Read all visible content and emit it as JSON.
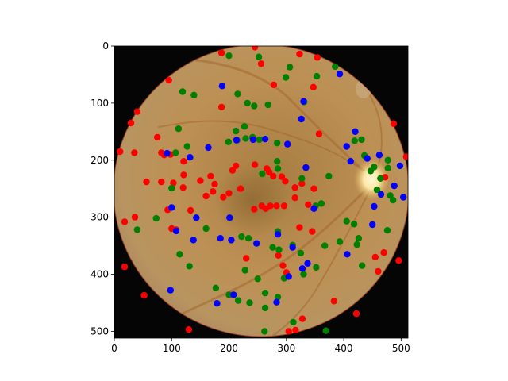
{
  "chart_data": {
    "type": "scatter",
    "background": "fundus-image",
    "xlim": [
      0,
      512
    ],
    "ylim": [
      512,
      0
    ],
    "x_ticks": [
      "0",
      "100",
      "200",
      "300",
      "400",
      "500"
    ],
    "y_ticks": [
      "0",
      "100",
      "200",
      "300",
      "400",
      "500"
    ],
    "grid": false,
    "series": [
      {
        "color": "#ff0000",
        "points": [
          [
            187,
            12
          ],
          [
            245,
            2
          ],
          [
            323,
            14
          ],
          [
            354,
            20
          ],
          [
            256,
            31
          ],
          [
            95,
            60
          ],
          [
            187,
            107
          ],
          [
            278,
            68
          ],
          [
            347,
            72
          ],
          [
            29,
            135
          ],
          [
            40,
            115
          ],
          [
            10,
            185
          ],
          [
            35,
            187
          ],
          [
            75,
            160
          ],
          [
            82,
            187
          ],
          [
            87,
            191
          ],
          [
            98,
            190
          ],
          [
            121,
            202
          ],
          [
            121,
            226
          ],
          [
            82,
            238
          ],
          [
            103,
            240
          ],
          [
            120,
            248
          ],
          [
            150,
            236
          ],
          [
            168,
            228
          ],
          [
            175,
            242
          ],
          [
            172,
            255
          ],
          [
            160,
            263
          ],
          [
            190,
            265
          ],
          [
            200,
            258
          ],
          [
            206,
            218
          ],
          [
            212,
            210
          ],
          [
            220,
            250
          ],
          [
            245,
            208
          ],
          [
            266,
            215
          ],
          [
            270,
            221
          ],
          [
            277,
            228
          ],
          [
            292,
            229
          ],
          [
            298,
            237
          ],
          [
            315,
            248
          ],
          [
            315,
            266
          ],
          [
            327,
            241
          ],
          [
            348,
            250
          ],
          [
            338,
            278
          ],
          [
            357,
            154
          ],
          [
            472,
            230
          ],
          [
            487,
            136
          ],
          [
            509,
            194
          ],
          [
            56,
            238
          ],
          [
            36,
            300
          ],
          [
            18,
            308
          ],
          [
            93,
            287
          ],
          [
            100,
            320
          ],
          [
            108,
            322
          ],
          [
            133,
            288
          ],
          [
            257,
            280
          ],
          [
            264,
            285
          ],
          [
            272,
            280
          ],
          [
            283,
            280
          ],
          [
            296,
            280
          ],
          [
            244,
            286
          ],
          [
            230,
            372
          ],
          [
            286,
            367
          ],
          [
            294,
            385
          ],
          [
            300,
            397
          ],
          [
            323,
            318
          ],
          [
            345,
            325
          ],
          [
            328,
            478
          ],
          [
            304,
            500
          ],
          [
            316,
            498
          ],
          [
            18,
            387
          ],
          [
            52,
            437
          ],
          [
            130,
            497
          ],
          [
            383,
            447
          ],
          [
            422,
            469
          ],
          [
            455,
            370
          ],
          [
            460,
            395
          ],
          [
            470,
            362
          ],
          [
            496,
            376
          ]
        ]
      },
      {
        "color": "#008000",
        "points": [
          [
            200,
            17
          ],
          [
            252,
            19
          ],
          [
            306,
            37
          ],
          [
            353,
            53
          ],
          [
            385,
            36
          ],
          [
            299,
            55
          ],
          [
            119,
            80
          ],
          [
            139,
            86
          ],
          [
            215,
            84
          ],
          [
            232,
            100
          ],
          [
            244,
            105
          ],
          [
            268,
            103
          ],
          [
            331,
            98
          ],
          [
            112,
            145
          ],
          [
            127,
            176
          ],
          [
            107,
            187
          ],
          [
            100,
            249
          ],
          [
            214,
            165
          ],
          [
            227,
            141
          ],
          [
            229,
            162
          ],
          [
            241,
            160
          ],
          [
            253,
            164
          ],
          [
            284,
            170
          ],
          [
            284,
            202
          ],
          [
            285,
            215
          ],
          [
            199,
            168
          ],
          [
            212,
            149
          ],
          [
            258,
            224
          ],
          [
            327,
            232
          ],
          [
            374,
            228
          ],
          [
            419,
            166
          ],
          [
            431,
            164
          ],
          [
            436,
            192
          ],
          [
            447,
            219
          ],
          [
            453,
            212
          ],
          [
            464,
            232
          ],
          [
            477,
            214
          ],
          [
            477,
            200
          ],
          [
            481,
            262
          ],
          [
            486,
            270
          ],
          [
            458,
            252
          ],
          [
            73,
            302
          ],
          [
            40,
            322
          ],
          [
            114,
            365
          ],
          [
            131,
            386
          ],
          [
            160,
            320
          ],
          [
            177,
            424
          ],
          [
            200,
            436
          ],
          [
            216,
            446
          ],
          [
            236,
            450
          ],
          [
            222,
            334
          ],
          [
            234,
            337
          ],
          [
            228,
            393
          ],
          [
            250,
            408
          ],
          [
            263,
            433
          ],
          [
            263,
            459
          ],
          [
            285,
            440
          ],
          [
            276,
            353
          ],
          [
            287,
            357
          ],
          [
            285,
            325
          ],
          [
            296,
            407
          ],
          [
            311,
            349
          ],
          [
            325,
            363
          ],
          [
            330,
            400
          ],
          [
            351,
            280
          ],
          [
            361,
            276
          ],
          [
            367,
            350
          ],
          [
            393,
            343
          ],
          [
            405,
            307
          ],
          [
            418,
            312
          ],
          [
            426,
            337
          ],
          [
            423,
            348
          ],
          [
            432,
            385
          ],
          [
            476,
            323
          ],
          [
            312,
            484
          ],
          [
            262,
            500
          ],
          [
            369,
            499
          ],
          [
            352,
            388
          ]
        ]
      },
      {
        "color": "#0000ff",
        "points": [
          [
            188,
            70
          ],
          [
            326,
            128
          ],
          [
            330,
            97
          ],
          [
            393,
            49
          ],
          [
            420,
            150
          ],
          [
            405,
            176
          ],
          [
            412,
            202
          ],
          [
            441,
            197
          ],
          [
            462,
            191
          ],
          [
            488,
            245
          ],
          [
            498,
            210
          ],
          [
            504,
            265
          ],
          [
            453,
            281
          ],
          [
            465,
            260
          ],
          [
            406,
            365
          ],
          [
            450,
            313
          ],
          [
            92,
            188
          ],
          [
            132,
            195
          ],
          [
            164,
            178
          ],
          [
            213,
            165
          ],
          [
            242,
            164
          ],
          [
            263,
            163
          ],
          [
            302,
            172
          ],
          [
            334,
            213
          ],
          [
            100,
            283
          ],
          [
            108,
            324
          ],
          [
            143,
            301
          ],
          [
            138,
            340
          ],
          [
            201,
            301
          ],
          [
            185,
            337
          ],
          [
            204,
            340
          ],
          [
            248,
            346
          ],
          [
            285,
            330
          ],
          [
            311,
            353
          ],
          [
            328,
            390
          ],
          [
            337,
            381
          ],
          [
            348,
            285
          ],
          [
            98,
            428
          ],
          [
            179,
            451
          ],
          [
            208,
            436
          ],
          [
            283,
            449
          ],
          [
            304,
            404
          ]
        ]
      }
    ]
  }
}
